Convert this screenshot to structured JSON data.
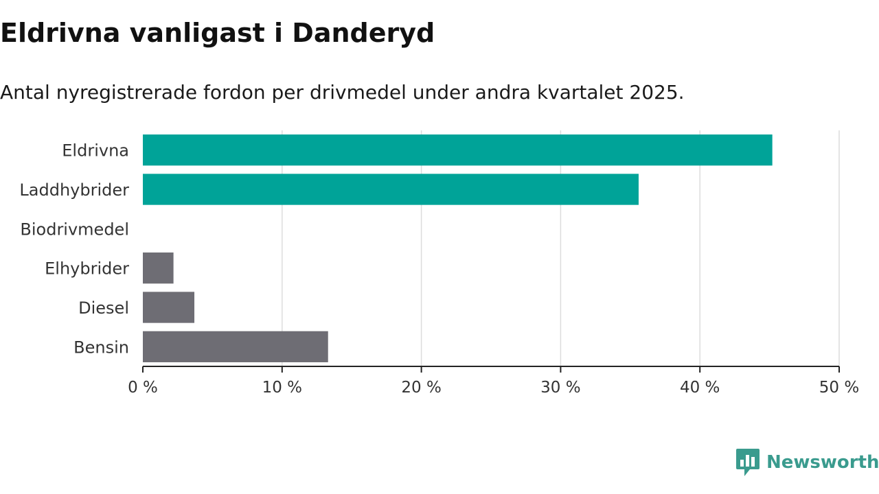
{
  "header": {
    "title": "Eldrivna vanligast i Danderyd",
    "subtitle": "Antal nyregistrerade fordon per drivmedel under andra kvartalet 2025."
  },
  "brand": {
    "name": "Newsworthy",
    "color": "#3a9b8e"
  },
  "chart_data": {
    "type": "bar",
    "orientation": "horizontal",
    "title": "Eldrivna vanligast i Danderyd",
    "subtitle": "Antal nyregistrerade fordon per drivmedel under andra kvartalet 2025.",
    "categories": [
      "Eldrivna",
      "Laddhybrider",
      "Biodrivmedel",
      "Elhybrider",
      "Diesel",
      "Bensin"
    ],
    "values": [
      45.2,
      35.6,
      0,
      2.2,
      3.7,
      13.3
    ],
    "colors": [
      "#00a398",
      "#00a398",
      "#00a398",
      "#6e6d74",
      "#6e6d74",
      "#6e6d74"
    ],
    "xlim": [
      0,
      50
    ],
    "xticks": [
      0,
      10,
      20,
      30,
      40,
      50
    ],
    "xtick_labels": [
      "0 %",
      "10 %",
      "20 %",
      "30 %",
      "40 %",
      "50 %"
    ],
    "xlabel": "",
    "ylabel": "",
    "grid": true,
    "legend": "none"
  }
}
